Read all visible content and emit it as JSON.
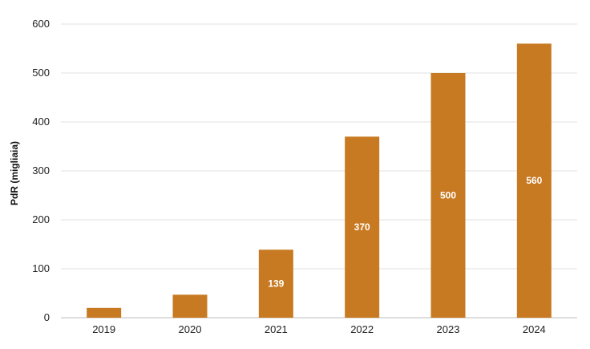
{
  "chart_data": {
    "type": "bar",
    "categories": [
      "2019",
      "2020",
      "2021",
      "2022",
      "2023",
      "2024"
    ],
    "values": [
      20,
      47,
      139,
      370,
      500,
      560
    ],
    "data_labels": [
      "",
      "",
      "139",
      "370",
      "500",
      "560"
    ],
    "title": "",
    "xlabel": "",
    "ylabel": "PdR (migliaia)",
    "ylim": [
      0,
      600
    ],
    "yticks": [
      "0",
      "100",
      "200",
      "300",
      "400",
      "500",
      "600"
    ],
    "grid": true,
    "legend": "none",
    "colors": {
      "bar": "#c87a22",
      "grid": "#e2e2e2"
    }
  }
}
